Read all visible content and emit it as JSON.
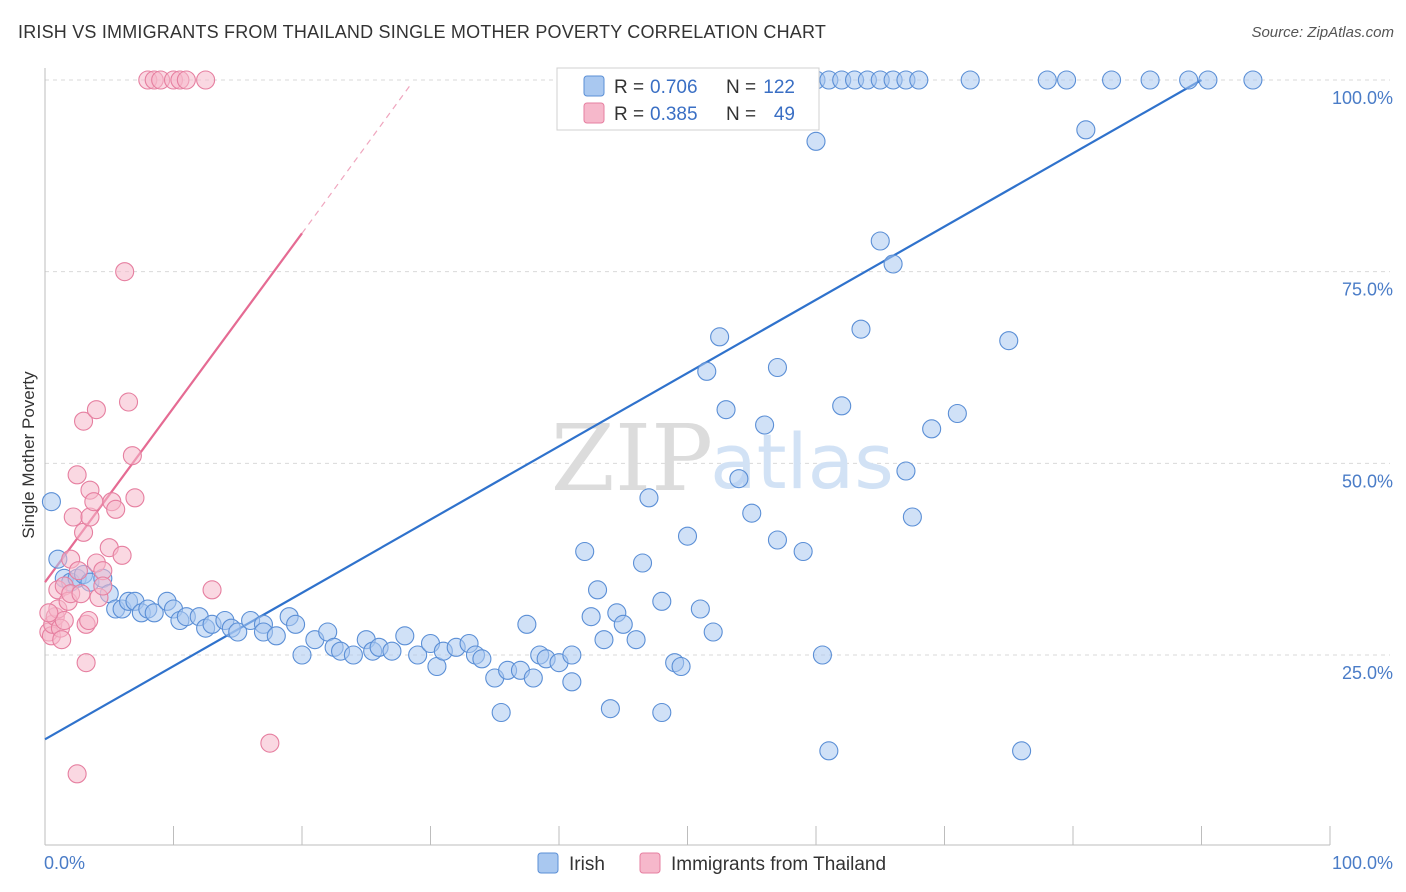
{
  "header": {
    "title": "IRISH VS IMMIGRANTS FROM THAILAND SINGLE MOTHER POVERTY CORRELATION CHART",
    "source": "Source: ZipAtlas.com"
  },
  "colors": {
    "irish_fill": "#a9c8f0",
    "irish_stroke": "#5b8fd6",
    "irish_line": "#2f72cc",
    "thai_fill": "#f6b8cb",
    "thai_stroke": "#e67fa0",
    "thai_line": "#e56b93",
    "grid": "#d9d9d9",
    "axis_text": "#4a7cc7"
  },
  "chart_data": {
    "type": "scatter",
    "title": "IRISH VS IMMIGRANTS FROM THAILAND SINGLE MOTHER POVERTY CORRELATION CHART",
    "xlabel": "",
    "ylabel": "Single Mother Poverty",
    "xlim": [
      0,
      100
    ],
    "ylim": [
      0,
      102
    ],
    "x_tick_labels": [
      "0.0%",
      "100.0%"
    ],
    "y_ticks": [
      25,
      50,
      75,
      100
    ],
    "y_tick_labels": [
      "25.0%",
      "50.0%",
      "75.0%",
      "100.0%"
    ],
    "watermark": {
      "part1": "ZIP",
      "part2": "atlas"
    },
    "legend": {
      "top": [
        {
          "name": "Irish",
          "r_label": "R =",
          "r": "0.706",
          "n_label": "N =",
          "n": "122"
        },
        {
          "name": "Immigrants from Thailand",
          "r_label": "R =",
          "r": "0.385",
          "n_label": "N =",
          "n": "49"
        }
      ],
      "bottom": [
        "Irish",
        "Immigrants from Thailand"
      ]
    },
    "series": [
      {
        "name": "Irish",
        "trend": {
          "x": [
            0,
            90
          ],
          "y": [
            14,
            100
          ]
        },
        "points": [
          [
            0.5,
            45
          ],
          [
            1,
            37.5
          ],
          [
            1.5,
            35
          ],
          [
            2,
            34.5
          ],
          [
            2.5,
            35
          ],
          [
            3,
            35.5
          ],
          [
            3.5,
            34.5
          ],
          [
            4.5,
            35
          ],
          [
            5,
            33
          ],
          [
            5.5,
            31
          ],
          [
            6,
            31
          ],
          [
            6.5,
            32
          ],
          [
            7,
            32
          ],
          [
            7.5,
            30.5
          ],
          [
            8,
            31
          ],
          [
            8.5,
            30.5
          ],
          [
            9.5,
            32
          ],
          [
            10,
            31
          ],
          [
            10.5,
            29.5
          ],
          [
            11,
            30
          ],
          [
            12,
            30
          ],
          [
            12.5,
            28.5
          ],
          [
            13,
            29
          ],
          [
            14,
            29.5
          ],
          [
            14.5,
            28.5
          ],
          [
            15,
            28
          ],
          [
            16,
            29.5
          ],
          [
            17,
            29
          ],
          [
            17,
            28
          ],
          [
            18,
            27.5
          ],
          [
            19,
            30
          ],
          [
            19.5,
            29
          ],
          [
            20,
            25
          ],
          [
            21,
            27
          ],
          [
            22,
            28
          ],
          [
            22.5,
            26
          ],
          [
            23,
            25.5
          ],
          [
            24,
            25
          ],
          [
            25,
            27
          ],
          [
            25.5,
            25.5
          ],
          [
            26,
            26
          ],
          [
            27,
            25.5
          ],
          [
            28,
            27.5
          ],
          [
            29,
            25
          ],
          [
            30,
            26.5
          ],
          [
            30.5,
            23.5
          ],
          [
            31,
            25.5
          ],
          [
            32,
            26
          ],
          [
            33,
            26.5
          ],
          [
            33.5,
            25
          ],
          [
            34,
            24.5
          ],
          [
            35,
            22
          ],
          [
            35.5,
            17.5
          ],
          [
            36,
            23
          ],
          [
            37,
            23
          ],
          [
            37.5,
            29
          ],
          [
            38,
            22
          ],
          [
            38.5,
            25
          ],
          [
            39,
            24.5
          ],
          [
            40,
            24
          ],
          [
            41,
            25
          ],
          [
            41,
            21.5
          ],
          [
            42,
            38.5
          ],
          [
            42.5,
            30
          ],
          [
            43,
            33.5
          ],
          [
            43.5,
            27
          ],
          [
            44,
            18
          ],
          [
            44.5,
            30.5
          ],
          [
            45,
            29
          ],
          [
            46,
            27
          ],
          [
            46.5,
            37
          ],
          [
            47,
            45.5
          ],
          [
            48,
            32
          ],
          [
            48,
            17.5
          ],
          [
            49,
            24
          ],
          [
            49.5,
            23.5
          ],
          [
            50,
            40.5
          ],
          [
            51,
            31
          ],
          [
            51.5,
            62
          ],
          [
            52,
            28
          ],
          [
            52.5,
            66.5
          ],
          [
            53,
            57
          ],
          [
            54,
            48
          ],
          [
            55,
            43.5
          ],
          [
            56,
            55
          ],
          [
            57,
            62.5
          ],
          [
            57,
            40
          ],
          [
            59,
            38.5
          ],
          [
            60,
            92
          ],
          [
            60.5,
            25
          ],
          [
            62,
            57.5
          ],
          [
            63.5,
            67.5
          ],
          [
            65,
            79
          ],
          [
            66,
            76
          ],
          [
            67,
            49
          ],
          [
            67.5,
            43
          ],
          [
            69,
            54.5
          ],
          [
            71,
            56.5
          ],
          [
            72,
            100
          ],
          [
            75,
            66
          ],
          [
            78,
            100
          ],
          [
            79.5,
            100
          ],
          [
            81,
            93.5
          ],
          [
            83,
            100
          ],
          [
            86,
            100
          ],
          [
            89,
            100
          ],
          [
            90.5,
            100
          ],
          [
            94,
            100
          ],
          [
            61,
            12.5
          ],
          [
            76,
            12.5
          ],
          [
            57,
            100
          ],
          [
            58,
            100
          ],
          [
            59,
            100
          ],
          [
            60,
            100
          ],
          [
            61,
            100
          ],
          [
            62,
            100
          ],
          [
            63,
            100
          ],
          [
            64,
            100
          ],
          [
            65,
            100
          ],
          [
            66,
            100
          ],
          [
            67,
            100
          ],
          [
            68,
            100
          ]
        ]
      },
      {
        "name": "Immigrants from Thailand",
        "trend": {
          "x": [
            0,
            20
          ],
          "y": [
            34.5,
            80
          ]
        },
        "trend_ext": {
          "x": [
            20,
            28.5
          ],
          "y": [
            80,
            99.5
          ]
        },
        "points": [
          [
            0.3,
            28
          ],
          [
            0.5,
            27.5
          ],
          [
            0.6,
            29
          ],
          [
            0.8,
            30
          ],
          [
            1,
            33.5
          ],
          [
            1,
            31
          ],
          [
            1.2,
            28.5
          ],
          [
            1.5,
            34
          ],
          [
            1.5,
            29.5
          ],
          [
            1.8,
            32
          ],
          [
            2,
            33
          ],
          [
            2,
            37.5
          ],
          [
            2.2,
            43
          ],
          [
            2.5,
            48.5
          ],
          [
            2.6,
            36
          ],
          [
            2.8,
            33
          ],
          [
            3,
            55.5
          ],
          [
            3,
            41
          ],
          [
            3.2,
            24
          ],
          [
            3.2,
            29
          ],
          [
            3.4,
            29.5
          ],
          [
            3.5,
            43
          ],
          [
            3.5,
            46.5
          ],
          [
            3.8,
            45
          ],
          [
            4,
            57
          ],
          [
            4,
            37
          ],
          [
            4.2,
            32.5
          ],
          [
            4.5,
            36
          ],
          [
            4.5,
            34
          ],
          [
            5,
            39
          ],
          [
            5.2,
            45
          ],
          [
            5.5,
            44
          ],
          [
            6,
            38
          ],
          [
            6.2,
            75
          ],
          [
            6.5,
            58
          ],
          [
            6.8,
            51
          ],
          [
            7,
            45.5
          ],
          [
            8,
            100
          ],
          [
            8.5,
            100
          ],
          [
            9,
            100
          ],
          [
            10,
            100
          ],
          [
            10.5,
            100
          ],
          [
            11,
            100
          ],
          [
            12.5,
            100
          ],
          [
            13,
            33.5
          ],
          [
            17.5,
            13.5
          ],
          [
            2.5,
            9.5
          ],
          [
            0.3,
            30.5
          ],
          [
            1.3,
            27
          ]
        ]
      }
    ]
  }
}
